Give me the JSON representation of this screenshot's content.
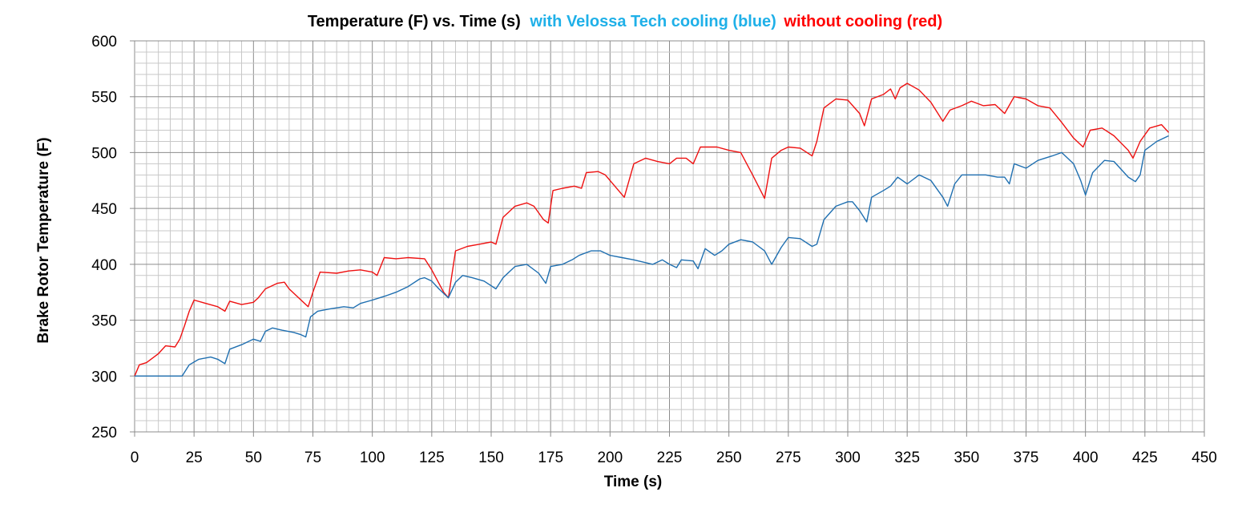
{
  "chart_data": {
    "type": "line",
    "title": {
      "part1": "Temperature (F)  vs. Time (s)",
      "part2": "with Velossa Tech cooling (blue)",
      "part3": "without cooling (red)"
    },
    "xlabel": "Time (s)",
    "ylabel": "Brake Rotor Temperature (F)",
    "xlim": [
      0,
      450
    ],
    "ylim": [
      250,
      600
    ],
    "x_major": 25,
    "x_minor": 5,
    "y_major": 50,
    "y_minor": 10,
    "grid": true,
    "x_ticks": [
      "0",
      "25",
      "50",
      "75",
      "100",
      "125",
      "150",
      "175",
      "200",
      "225",
      "250",
      "275",
      "300",
      "325",
      "350",
      "375",
      "400",
      "425",
      "450"
    ],
    "y_ticks": [
      "250",
      "300",
      "350",
      "400",
      "450",
      "500",
      "550",
      "600"
    ],
    "colors": {
      "title_blue": "#1fb0e8",
      "title_red": "#ff0000",
      "cooled": "#1f6fb0",
      "uncooled": "#ee1111",
      "grid_major": "#8c8c8c",
      "grid_minor": "#c8c8c8"
    },
    "series": [
      {
        "key": "uncooled",
        "x": [
          0,
          2,
          5,
          10,
          13,
          17,
          19,
          21,
          23,
          25,
          30,
          35,
          38,
          40,
          45,
          50,
          52,
          55,
          60,
          63,
          65,
          70,
          73,
          75,
          78,
          85,
          90,
          95,
          100,
          102,
          105,
          110,
          115,
          122,
          125,
          130,
          132,
          135,
          140,
          145,
          150,
          152,
          155,
          160,
          165,
          168,
          172,
          174,
          176,
          180,
          185,
          188,
          190,
          195,
          198,
          202,
          206,
          210,
          215,
          220,
          225,
          228,
          232,
          235,
          238,
          245,
          250,
          255,
          260,
          265,
          268,
          272,
          275,
          280,
          285,
          287,
          290,
          295,
          300,
          305,
          307,
          310,
          315,
          318,
          320,
          322,
          325,
          330,
          335,
          340,
          343,
          348,
          352,
          357,
          362,
          366,
          370,
          375,
          380,
          385,
          390,
          395,
          399,
          402,
          407,
          412,
          418,
          420,
          423,
          427,
          432,
          435
        ],
        "y": [
          300,
          310,
          312,
          320,
          327,
          326,
          333,
          345,
          358,
          368,
          365,
          362,
          358,
          367,
          364,
          366,
          370,
          378,
          383,
          384,
          378,
          368,
          362,
          375,
          393,
          392,
          394,
          395,
          393,
          390,
          406,
          405,
          406,
          405,
          395,
          375,
          370,
          412,
          416,
          418,
          420,
          418,
          442,
          452,
          455,
          452,
          440,
          437,
          466,
          468,
          470,
          468,
          482,
          483,
          480,
          470,
          460,
          490,
          495,
          492,
          490,
          495,
          495,
          490,
          505,
          505,
          502,
          500,
          480,
          459,
          495,
          502,
          505,
          504,
          497,
          510,
          540,
          548,
          547,
          535,
          524,
          548,
          552,
          557,
          548,
          558,
          562,
          556,
          545,
          528,
          538,
          542,
          546,
          542,
          543,
          535,
          550,
          548,
          542,
          540,
          527,
          513,
          505,
          520,
          522,
          515,
          502,
          495,
          510,
          522,
          525,
          518
        ]
      },
      {
        "key": "cooled",
        "x": [
          0,
          20,
          23,
          27,
          32,
          35,
          38,
          40,
          45,
          50,
          53,
          55,
          58,
          62,
          67,
          70,
          72,
          74,
          77,
          82,
          88,
          92,
          95,
          100,
          103,
          106,
          110,
          115,
          120,
          122,
          125,
          128,
          132,
          135,
          138,
          142,
          147,
          152,
          155,
          160,
          165,
          170,
          173,
          175,
          180,
          184,
          187,
          192,
          196,
          200,
          205,
          210,
          218,
          222,
          225,
          228,
          230,
          235,
          237,
          240,
          244,
          247,
          250,
          255,
          260,
          265,
          268,
          272,
          275,
          280,
          285,
          287,
          290,
          295,
          300,
          302,
          305,
          308,
          310,
          315,
          318,
          321,
          325,
          330,
          335,
          340,
          342,
          345,
          348,
          353,
          358,
          363,
          366,
          368,
          370,
          375,
          380,
          386,
          390,
          395,
          398,
          400,
          403,
          408,
          412,
          418,
          421,
          423,
          425,
          430,
          435
        ],
        "y": [
          300,
          300,
          310,
          315,
          317,
          315,
          311,
          324,
          328,
          333,
          331,
          340,
          343,
          341,
          339,
          337,
          335,
          353,
          358,
          360,
          362,
          361,
          365,
          368,
          370,
          372,
          375,
          380,
          387,
          388,
          385,
          378,
          370,
          384,
          390,
          388,
          385,
          378,
          388,
          398,
          400,
          392,
          383,
          398,
          400,
          404,
          408,
          412,
          412,
          408,
          406,
          404,
          400,
          404,
          400,
          397,
          404,
          403,
          396,
          414,
          408,
          412,
          418,
          422,
          420,
          412,
          400,
          415,
          424,
          423,
          416,
          418,
          440,
          452,
          456,
          456,
          448,
          438,
          460,
          466,
          470,
          478,
          472,
          480,
          475,
          460,
          452,
          472,
          480,
          480,
          480,
          478,
          478,
          472,
          490,
          486,
          493,
          497,
          500,
          490,
          475,
          462,
          482,
          493,
          492,
          478,
          474,
          480,
          502,
          510,
          515
        ]
      }
    ]
  }
}
